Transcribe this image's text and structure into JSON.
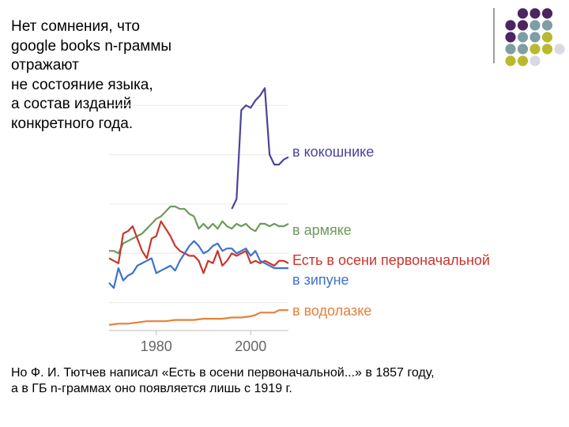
{
  "slide": {
    "title_lines": [
      "Нет сомнения, что",
      "google books n-граммы",
      "отражают",
      "не состояние языка,",
      "а состав изданий",
      "конкретного года."
    ],
    "note_lines": [
      "Но Ф. И. Тютчев написал «Есть в осени первоначальной...» в 1857 году,",
      "а в ГБ n-граммах оно появляется лишь с 1919  г."
    ],
    "deco_colors": [
      "#4b2460",
      "#7f9ea3",
      "#b9b92e",
      "#d9d9e3"
    ]
  },
  "chart_data": {
    "type": "line",
    "title": "",
    "xlabel": "",
    "ylabel": "",
    "xlim": [
      1970,
      2008
    ],
    "ylim": [
      0,
      100
    ],
    "xticks": [
      1980,
      2000
    ],
    "grid": "horizontal",
    "legend": "labels at right end of lines",
    "series": [
      {
        "name": "в кокошнике",
        "color": "#4a449a",
        "x": [
          1996,
          1997,
          1998,
          1999,
          2000,
          2001,
          2002,
          2003,
          2004,
          2005,
          2006,
          2007,
          2008
        ],
        "y": [
          48,
          52,
          88,
          90,
          89,
          92,
          94,
          97,
          70,
          66,
          66,
          68,
          69
        ]
      },
      {
        "name": "в армяке",
        "color": "#6d9a5c",
        "x": [
          1970,
          1971,
          1972,
          1973,
          1974,
          1975,
          1976,
          1977,
          1978,
          1979,
          1980,
          1981,
          1982,
          1983,
          1984,
          1985,
          1986,
          1987,
          1988,
          1989,
          1990,
          1991,
          1992,
          1993,
          1994,
          1995,
          1996,
          1997,
          1998,
          1999,
          2000,
          2001,
          2002,
          2003,
          2004,
          2005,
          2006,
          2007,
          2008
        ],
        "y": [
          31,
          31,
          30,
          34,
          35,
          36,
          37,
          38,
          40,
          42,
          44,
          45,
          47,
          49,
          49,
          48,
          48,
          46,
          45,
          40,
          42,
          40,
          42,
          40,
          43,
          41,
          40,
          42,
          41,
          42,
          40,
          39,
          42,
          42,
          41,
          42,
          41,
          41,
          42
        ]
      },
      {
        "name": "Есть в осени первоначальной",
        "color": "#c9362b",
        "x": [
          1970,
          1971,
          1972,
          1973,
          1974,
          1975,
          1976,
          1977,
          1978,
          1979,
          1980,
          1981,
          1982,
          1983,
          1984,
          1985,
          1986,
          1987,
          1988,
          1989,
          1990,
          1991,
          1992,
          1993,
          1994,
          1995,
          1996,
          1997,
          1998,
          1999,
          2000,
          2001,
          2002,
          2003,
          2004,
          2005,
          2006,
          2007,
          2008
        ],
        "y": [
          28,
          27,
          26,
          38,
          39,
          41,
          36,
          31,
          28,
          36,
          37,
          43,
          40,
          37,
          33,
          31,
          30,
          29,
          29,
          27,
          22,
          27,
          26,
          31,
          25,
          27,
          30,
          29,
          30,
          31,
          26,
          27,
          26,
          27,
          26,
          25,
          27,
          27,
          26
        ]
      },
      {
        "name": "в зипуне",
        "color": "#3f72c9",
        "x": [
          1970,
          1971,
          1972,
          1973,
          1974,
          1975,
          1976,
          1977,
          1978,
          1979,
          1980,
          1981,
          1982,
          1983,
          1984,
          1985,
          1986,
          1987,
          1988,
          1989,
          1990,
          1991,
          1992,
          1993,
          1994,
          1995,
          1996,
          1997,
          1998,
          1999,
          2000,
          2001,
          2002,
          2003,
          2004,
          2005,
          2006,
          2007,
          2008
        ],
        "y": [
          18,
          16,
          24,
          19,
          21,
          22,
          25,
          26,
          27,
          28,
          22,
          23,
          24,
          25,
          23,
          27,
          30,
          33,
          35,
          33,
          30,
          31,
          33,
          34,
          31,
          32,
          32,
          30,
          31,
          32,
          29,
          31,
          27,
          26,
          25,
          24,
          24,
          24,
          24
        ]
      },
      {
        "name": "в водолазке",
        "color": "#e5803b",
        "x": [
          1970,
          1972,
          1974,
          1976,
          1978,
          1980,
          1982,
          1984,
          1986,
          1988,
          1990,
          1992,
          1994,
          1996,
          1998,
          2000,
          2001,
          2002,
          2003,
          2004,
          2005,
          2006,
          2007,
          2008
        ],
        "y": [
          1,
          1.5,
          1.5,
          2,
          2.5,
          2.5,
          2.5,
          3,
          3,
          3,
          3.5,
          3.5,
          3.5,
          4,
          4,
          4.5,
          5,
          6,
          6,
          6,
          6,
          7,
          7,
          7
        ]
      }
    ]
  }
}
